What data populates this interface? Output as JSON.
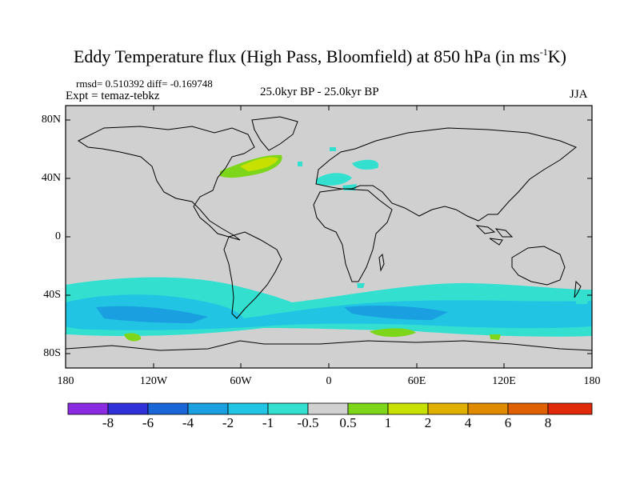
{
  "title": {
    "main": "Eddy Temperature flux (High Pass, Bloomfield) at 850 hPa (in ms",
    "sup": "-1",
    "end": "K)"
  },
  "stats": {
    "rmsd": "rmsd= 0.510392 diff= -0.169748",
    "expt": "Expt = temaz-tebkz",
    "period": "25.0kyr BP - 25.0kyr BP",
    "season": "JJA"
  },
  "axes": {
    "yticks": [
      "80N",
      "40N",
      "0",
      "40S",
      "80S"
    ],
    "xticks": [
      "180",
      "120W",
      "60W",
      "0",
      "60E",
      "120E",
      "180"
    ]
  },
  "colorbar": {
    "labels": [
      "-8",
      "-6",
      "-4",
      "-2",
      "-1",
      "-0.5",
      "0.5",
      "1",
      "2",
      "4",
      "6",
      "8"
    ],
    "colors": [
      "#8a2be2",
      "#3030d8",
      "#1a66d8",
      "#1aa0e0",
      "#22c4e4",
      "#33e0d0",
      "#d0d0d0",
      "#7ed61a",
      "#c8e000",
      "#e0b000",
      "#e08a00",
      "#e06000",
      "#e02a0a"
    ]
  },
  "colors": {
    "land_bg": "#d0d0d0",
    "coast": "#000000"
  }
}
